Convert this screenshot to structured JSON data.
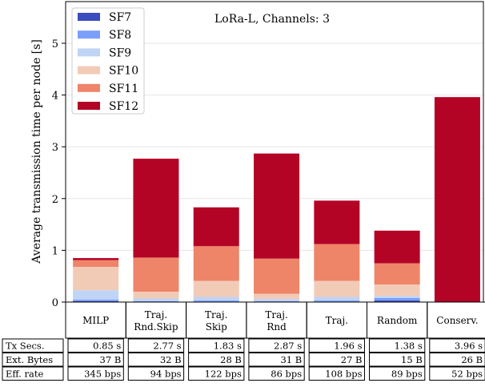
{
  "chart_data": {
    "type": "bar",
    "title": "LoRa-L, Channels: 3",
    "xlabel": "",
    "ylabel": "Average transmission time per node [s]",
    "ylim": [
      0,
      5.6
    ],
    "yticks": [
      0,
      1,
      2,
      3,
      4,
      5
    ],
    "grid": true,
    "legend_position": "top-left",
    "categories": [
      [
        "MILP"
      ],
      [
        "Traj.",
        "Rnd.Skip"
      ],
      [
        "Traj.",
        "Skip"
      ],
      [
        "Traj.",
        "Rnd"
      ],
      [
        "Traj."
      ],
      [
        "Random"
      ],
      [
        "Conserv."
      ]
    ],
    "series": [
      {
        "name": "SF7",
        "color": "#3b4cc0",
        "values": [
          0.02,
          0.0,
          0.0,
          0.0,
          0.0,
          0.03,
          0.0
        ]
      },
      {
        "name": "SF8",
        "color": "#7b9ff9",
        "values": [
          0.03,
          0.02,
          0.03,
          0.02,
          0.03,
          0.05,
          0.0
        ]
      },
      {
        "name": "SF9",
        "color": "#c0d4f5",
        "values": [
          0.18,
          0.05,
          0.07,
          0.04,
          0.07,
          0.04,
          0.0
        ]
      },
      {
        "name": "SF10",
        "color": "#f2cbb7",
        "values": [
          0.45,
          0.13,
          0.31,
          0.1,
          0.31,
          0.22,
          0.0
        ]
      },
      {
        "name": "SF11",
        "color": "#ee8468",
        "values": [
          0.13,
          0.66,
          0.67,
          0.68,
          0.71,
          0.41,
          0.0
        ]
      },
      {
        "name": "SF12",
        "color": "#b40426",
        "values": [
          0.04,
          1.91,
          0.75,
          2.03,
          0.84,
          0.63,
          3.96
        ]
      }
    ],
    "table": {
      "rows": [
        {
          "label": "Tx Secs.",
          "values": [
            "0.85 s",
            "2.77 s",
            "1.83 s",
            "2.87 s",
            "1.96 s",
            "1.38 s",
            "3.96 s"
          ]
        },
        {
          "label": "Ext. Bytes",
          "values": [
            "37 B",
            "32 B",
            "28 B",
            "31 B",
            "27 B",
            "15 B",
            "26 B"
          ]
        },
        {
          "label": "Eff. rate",
          "values": [
            "345 bps",
            "94 bps",
            "122 bps",
            "86 bps",
            "108 bps",
            "89 bps",
            "52 bps"
          ]
        }
      ]
    }
  }
}
